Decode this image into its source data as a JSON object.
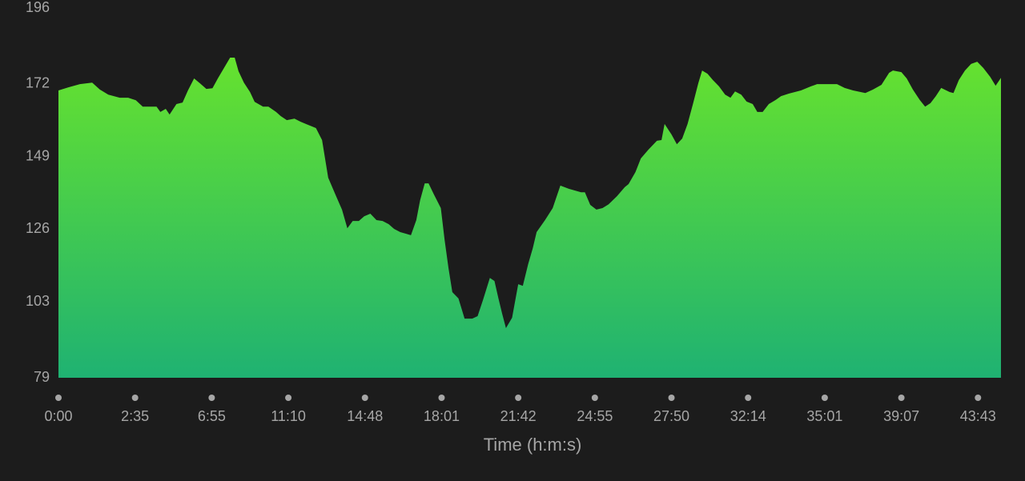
{
  "chart_data": {
    "type": "area",
    "x_label": "Time (h:m:s)",
    "x": [
      0,
      0.13,
      0.28,
      0.44,
      0.54,
      0.65,
      0.8,
      0.91,
      1.01,
      1.1,
      1.28,
      1.33,
      1.4,
      1.45,
      1.54,
      1.62,
      1.69,
      1.77,
      1.85,
      1.93,
      2.01,
      2.08,
      2.16,
      2.24,
      2.3,
      2.35,
      2.42,
      2.5,
      2.56,
      2.67,
      2.74,
      2.84,
      2.9,
      2.98,
      3.08,
      3.16,
      3.29,
      3.36,
      3.44,
      3.52,
      3.61,
      3.7,
      3.77,
      3.84,
      3.92,
      3.99,
      4.07,
      4.15,
      4.23,
      4.31,
      4.38,
      4.46,
      4.6,
      4.67,
      4.72,
      4.78,
      4.83,
      4.9,
      4.99,
      5.04,
      5.09,
      5.14,
      5.22,
      5.3,
      5.4,
      5.47,
      5.54,
      5.63,
      5.69,
      5.74,
      5.79,
      5.84,
      5.92,
      6.0,
      6.06,
      6.13,
      6.19,
      6.24,
      6.35,
      6.45,
      6.55,
      6.66,
      6.82,
      6.87,
      6.94,
      7.02,
      7.1,
      7.18,
      7.29,
      7.39,
      7.44,
      7.53,
      7.6,
      7.7,
      7.81,
      7.87,
      7.91,
      8.0,
      8.07,
      8.14,
      8.21,
      8.28,
      8.35,
      8.4,
      8.47,
      8.54,
      8.62,
      8.7,
      8.77,
      8.83,
      8.91,
      8.98,
      9.06,
      9.12,
      9.19,
      9.27,
      9.36,
      9.43,
      9.53,
      9.64,
      9.69,
      9.82,
      9.9,
      10.16,
      10.26,
      10.37,
      10.53,
      10.63,
      10.74,
      10.84,
      10.89,
      11.0,
      11.07,
      11.15,
      11.24,
      11.31,
      11.38,
      11.45,
      11.52,
      11.63,
      11.68,
      11.75,
      11.83,
      11.91,
      11.99,
      12.07,
      12.16,
      12.23,
      12.3
    ],
    "y": [
      169.9,
      170.9,
      171.9,
      172.4,
      170.2,
      168.6,
      167.6,
      167.6,
      166.8,
      164.8,
      164.8,
      163.1,
      164.1,
      162.3,
      165.6,
      166.1,
      169.9,
      173.7,
      172.1,
      170.4,
      170.6,
      173.7,
      177.0,
      180.3,
      180.3,
      176.0,
      172.4,
      169.4,
      166.3,
      164.8,
      164.8,
      163.1,
      161.8,
      160.5,
      161.0,
      160.0,
      158.7,
      158.0,
      154.2,
      142.3,
      137.2,
      132.2,
      126.3,
      128.6,
      128.6,
      130.1,
      130.9,
      128.9,
      128.6,
      127.6,
      126.1,
      125.1,
      124.1,
      128.9,
      135.2,
      140.5,
      140.5,
      137.0,
      132.7,
      122.5,
      113.7,
      106.1,
      104.1,
      97.7,
      97.7,
      98.5,
      103.6,
      110.6,
      109.6,
      104.3,
      99.3,
      94.7,
      98.0,
      108.6,
      108.1,
      115.0,
      120.0,
      125.1,
      128.9,
      132.7,
      139.8,
      138.8,
      137.7,
      137.7,
      133.7,
      132.2,
      132.7,
      133.9,
      136.5,
      139.3,
      140.3,
      144.1,
      148.4,
      151.2,
      154.0,
      154.2,
      159.3,
      156.0,
      152.9,
      154.7,
      159.3,
      165.6,
      172.2,
      176.2,
      175.2,
      173.2,
      171.2,
      168.6,
      167.6,
      169.6,
      168.6,
      166.4,
      165.6,
      163.1,
      163.1,
      165.6,
      166.9,
      168.1,
      168.9,
      169.6,
      169.9,
      171.2,
      171.9,
      171.9,
      170.7,
      169.9,
      169.1,
      170.2,
      171.7,
      175.5,
      176.2,
      175.7,
      173.7,
      170.2,
      166.9,
      164.8,
      165.9,
      168.1,
      170.7,
      169.4,
      169.1,
      173.2,
      176.2,
      178.3,
      179.0,
      177.0,
      174.2,
      171.4,
      173.9
    ],
    "xlim": [
      0,
      12.3
    ],
    "xticks": [
      {
        "value": 0,
        "label": "0:00"
      },
      {
        "value": 1,
        "label": "2:35"
      },
      {
        "value": 2,
        "label": "6:55"
      },
      {
        "value": 3,
        "label": "11:10"
      },
      {
        "value": 4,
        "label": "14:48"
      },
      {
        "value": 5,
        "label": "18:01"
      },
      {
        "value": 6,
        "label": "21:42"
      },
      {
        "value": 7,
        "label": "24:55"
      },
      {
        "value": 8,
        "label": "27:50"
      },
      {
        "value": 9,
        "label": "32:14"
      },
      {
        "value": 10,
        "label": "35:01"
      },
      {
        "value": 11,
        "label": "39:07"
      },
      {
        "value": 12,
        "label": "43:43"
      }
    ],
    "ylim": [
      79,
      196
    ],
    "yticks": [
      79,
      103,
      126,
      149,
      172,
      196
    ],
    "gradient": [
      "#66e22e",
      "#1fb272"
    ]
  }
}
